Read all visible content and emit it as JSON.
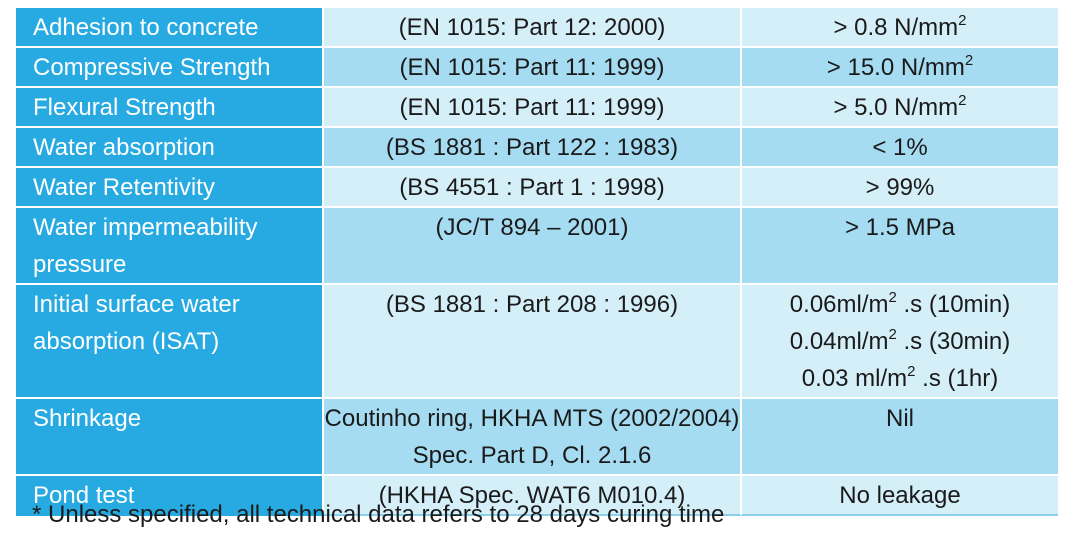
{
  "colors": {
    "header_column": "#27aae1",
    "light_row": "#d5eff9",
    "dark_row": "#a6dcf2"
  },
  "rows": [
    {
      "property": "Adhesion to concrete",
      "standard": "(EN 1015: Part 12: 2000)",
      "value": {
        "text": "> 0.8 N/mm",
        "sup": "2"
      }
    },
    {
      "property": "Compressive Strength",
      "standard": "(EN 1015: Part 11: 1999)",
      "value": {
        "text": "> 15.0 N/mm",
        "sup": "2"
      }
    },
    {
      "property": "Flexural Strength",
      "standard": "(EN 1015: Part 11: 1999)",
      "value": {
        "text": "> 5.0 N/mm",
        "sup": "2"
      }
    },
    {
      "property": "Water absorption",
      "standard": "(BS 1881 : Part 122 : 1983)",
      "value": {
        "text": "< 1%"
      }
    },
    {
      "property": "Water Retentivity",
      "standard": "(BS 4551 : Part 1 : 1998)",
      "value": {
        "text": "> 99%"
      }
    },
    {
      "property": "Water impermeability pressure",
      "standard": "(JC/T 894 – 2001)",
      "value": {
        "text": "> 1.5 MPa"
      }
    },
    {
      "property": "Initial surface water absorption (ISAT)",
      "standard": "(BS 1881 :  Part 208 : 1996)",
      "value_lines": [
        {
          "pre": "0.06ml/m",
          "sup": "2",
          "post": " .s (10min)"
        },
        {
          "pre": "0.04ml/m",
          "sup": "2",
          "post": " .s (30min)"
        },
        {
          "pre": "0.03 ml/m",
          "sup": "2",
          "post": " .s (1hr)"
        }
      ]
    },
    {
      "property": "Shrinkage",
      "standard": "Coutinho ring, HKHA MTS (2002/2004) Spec. Part D, Cl. 2.1.6",
      "value": {
        "text": "Nil"
      }
    },
    {
      "property": "Pond test",
      "standard": "(HKHA Spec. WAT6 M010.4)",
      "value": {
        "text": "No leakage"
      }
    }
  ],
  "footnote": "* Unless specified, all technical data refers to 28 days curing time"
}
